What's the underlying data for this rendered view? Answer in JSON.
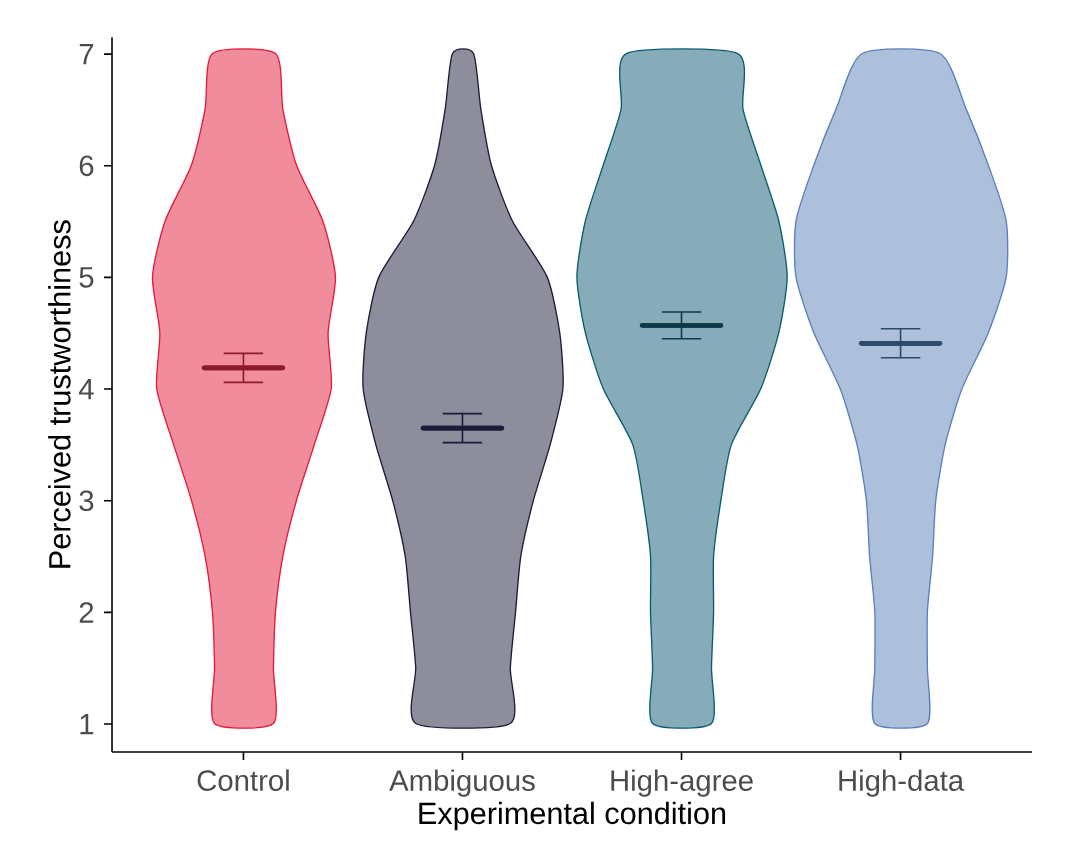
{
  "chart_data": {
    "type": "box",
    "xlabel": "Experimental condition",
    "ylabel": "Perceived trustworthiness",
    "categories": [
      "Control",
      "Ambiguous",
      "High-agree",
      "High-data"
    ],
    "ylim": [
      0.75,
      7.15
    ],
    "yticks": [
      1,
      2,
      3,
      4,
      5,
      6,
      7
    ],
    "colors": [
      "#8b1a2a",
      "#1b1b3a",
      "#0d3a4a",
      "#2e4a6a"
    ],
    "boxes": [
      {
        "low": 4.06,
        "q1": 4.19,
        "median": 4.19,
        "q3": 4.19,
        "high": 4.32
      },
      {
        "low": 3.52,
        "q1": 3.65,
        "median": 3.65,
        "q3": 3.65,
        "high": 3.78
      },
      {
        "low": 4.45,
        "q1": 4.57,
        "median": 4.57,
        "q3": 4.57,
        "high": 4.69
      },
      {
        "low": 4.28,
        "q1": 4.41,
        "median": 4.41,
        "q3": 4.41,
        "high": 4.54
      }
    ]
  }
}
